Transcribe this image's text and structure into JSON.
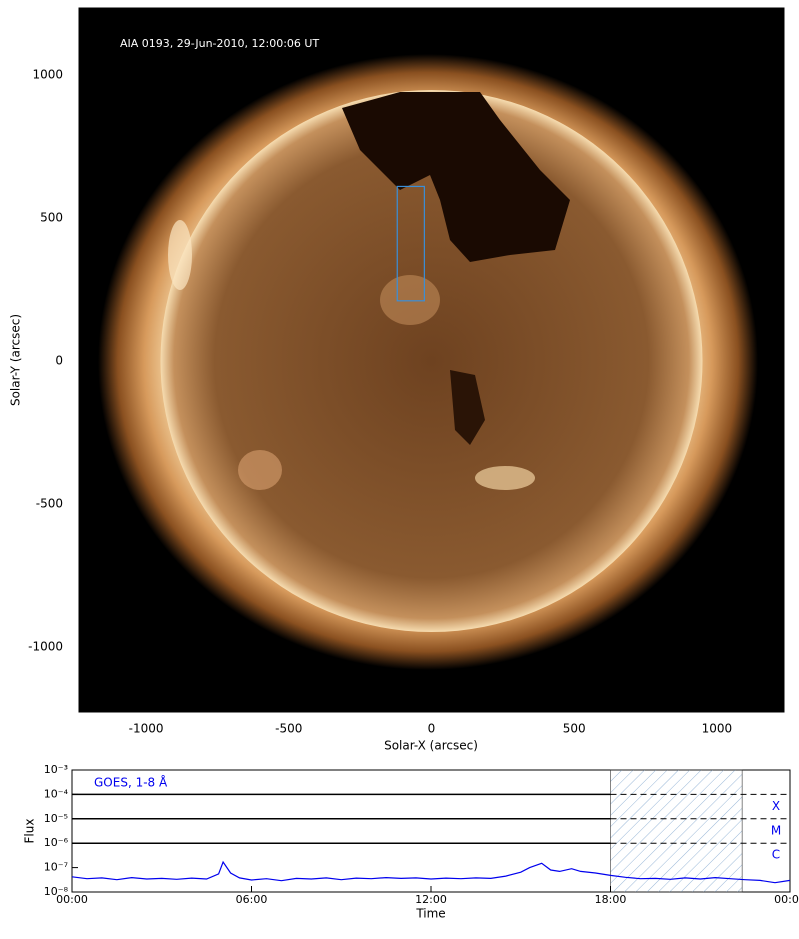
{
  "chart_data": [
    {
      "type": "image",
      "annotation": "AIA 0193, 29-Jun-2010, 12:00:06 UT",
      "xlabel": "Solar-X (arcsec)",
      "ylabel": "Solar-Y (arcsec)",
      "xlim": [
        -1235,
        1235
      ],
      "ylim": [
        -1228,
        1234
      ],
      "xticks": [
        -1000,
        -500,
        0,
        500,
        1000
      ],
      "yticks": [
        -1000,
        -500,
        0,
        500,
        1000
      ],
      "box": {
        "x": [
          -120,
          -25
        ],
        "y": [
          210,
          610
        ],
        "color": "#3a8fd8"
      }
    },
    {
      "type": "line",
      "xlabel": "Time",
      "ylabel": "Flux",
      "log_y": true,
      "xlim": [
        0,
        24
      ],
      "ylim": [
        1e-08,
        0.001
      ],
      "xticks": [
        {
          "value": 0,
          "label": "00:00"
        },
        {
          "value": 6,
          "label": "06:00"
        },
        {
          "value": 12,
          "label": "12:00"
        },
        {
          "value": 18,
          "label": "18:00"
        },
        {
          "value": 24,
          "label": "00:00"
        }
      ],
      "yticks": [
        {
          "value": 1e-08,
          "label": "10⁻⁸"
        },
        {
          "value": 1e-07,
          "label": "10⁻⁷"
        },
        {
          "value": 1e-06,
          "label": "10⁻⁶"
        },
        {
          "value": 1e-05,
          "label": "10⁻⁵"
        },
        {
          "value": 0.0001,
          "label": "10⁻⁴"
        },
        {
          "value": 0.001,
          "label": "10⁻³"
        }
      ],
      "levels": [
        {
          "value": 0.0001,
          "label": "X"
        },
        {
          "value": 1e-05,
          "label": "M"
        },
        {
          "value": 1e-06,
          "label": "C"
        }
      ],
      "shade": [
        18,
        22.4
      ],
      "x": [
        0,
        0.5,
        1,
        1.5,
        2,
        2.5,
        3,
        3.5,
        4,
        4.5,
        4.9,
        5.05,
        5.3,
        5.6,
        6,
        6.5,
        7,
        7.5,
        8,
        8.5,
        9,
        9.5,
        10,
        10.5,
        11,
        11.5,
        12,
        12.5,
        13,
        13.5,
        14,
        14.5,
        15,
        15.3,
        15.7,
        16,
        16.3,
        16.7,
        17,
        17.5,
        18,
        18.5,
        19,
        19.5,
        20,
        20.5,
        21,
        21.5,
        22,
        22.5,
        23,
        23.5,
        24
      ],
      "series": [
        {
          "name": "GOES, 1-8 Å",
          "color": "#0000ee",
          "values": [
            4.2e-08,
            3.5e-08,
            3.8e-08,
            3.2e-08,
            3.9e-08,
            3.4e-08,
            3.6e-08,
            3.3e-08,
            3.7e-08,
            3.4e-08,
            5.5e-08,
            1.7e-07,
            6e-08,
            3.8e-08,
            3.1e-08,
            3.5e-08,
            2.9e-08,
            3.6e-08,
            3.4e-08,
            3.8e-08,
            3.2e-08,
            3.7e-08,
            3.5e-08,
            3.9e-08,
            3.6e-08,
            3.8e-08,
            3.4e-08,
            3.7e-08,
            3.5e-08,
            3.8e-08,
            3.6e-08,
            4.5e-08,
            6.5e-08,
            1e-07,
            1.5e-07,
            8e-08,
            7e-08,
            9e-08,
            7e-08,
            6e-08,
            4.8e-08,
            4e-08,
            3.5e-08,
            3.6e-08,
            3.3e-08,
            3.8e-08,
            3.4e-08,
            3.9e-08,
            3.5e-08,
            3.2e-08,
            3e-08,
            2.4e-08,
            3e-08
          ]
        }
      ]
    }
  ]
}
